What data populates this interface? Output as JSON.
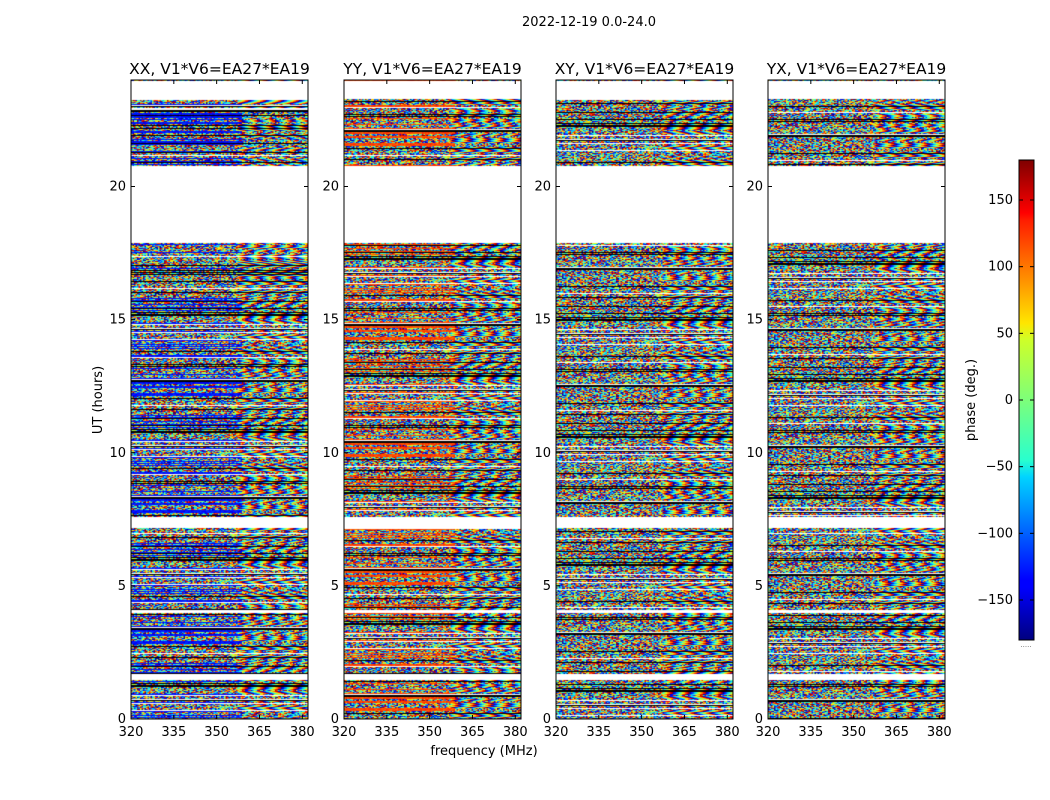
{
  "chart_data": {
    "type": "heatmap",
    "suptitle": "2022-12-19 0.0-24.0",
    "xlabel": "frequency (MHz)",
    "ylabel": "UT (hours)",
    "xlim": [
      320,
      382
    ],
    "ylim": [
      0,
      24
    ],
    "x_ticks": [
      320,
      335,
      350,
      365,
      380
    ],
    "y_ticks": [
      0,
      5,
      10,
      15,
      20
    ],
    "colorbar": {
      "label": "phase (deg.)",
      "range": [
        -180,
        180
      ],
      "ticks": [
        150,
        100,
        50,
        0,
        -50,
        -100,
        -150
      ],
      "tick_labels": [
        "150",
        "100",
        "50",
        "0",
        "−50",
        "−100",
        "−150"
      ],
      "colormap": "jet",
      "footer": "....."
    },
    "gaps_ut_hours": [
      [
        1.5,
        1.7
      ],
      [
        4.0,
        4.1
      ],
      [
        7.2,
        7.6
      ],
      [
        17.9,
        20.8
      ],
      [
        23.3,
        24.0
      ]
    ],
    "panels": [
      {
        "title": "XX, V1*V6=EA27*EA19",
        "pol": "XX",
        "dominant_phase_deg": -130
      },
      {
        "title": "YY, V1*V6=EA27*EA19",
        "pol": "YY",
        "dominant_phase_deg": 110
      },
      {
        "title": "XY, V1*V6=EA27*EA19",
        "pol": "XY",
        "dominant_phase_deg": null
      },
      {
        "title": "YX, V1*V6=EA27*EA19",
        "pol": "YX",
        "dominant_phase_deg": null
      }
    ]
  }
}
